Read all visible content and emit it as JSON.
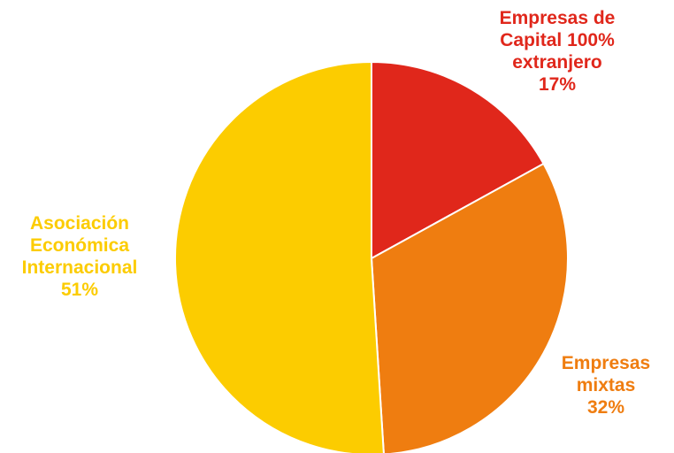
{
  "chart_data": {
    "type": "pie",
    "categories": [
      "Empresas de Capital 100% extranjero",
      "Empresas mixtas",
      "Asociación Económica Internacional"
    ],
    "values": [
      17,
      32,
      51
    ],
    "unit": "%",
    "colors": [
      "#e0271b",
      "#ef7d10",
      "#fccc00"
    ],
    "start_angle_deg": 0,
    "direction": "clockwise",
    "legend": "none",
    "labels": [
      {
        "lines": [
          "Empresas de",
          "Capital 100%",
          "extranjero"
        ],
        "pct": "17%",
        "color": "#e0271b"
      },
      {
        "lines": [
          "Empresas",
          "mixtas"
        ],
        "pct": "32%",
        "color": "#ef7d10"
      },
      {
        "lines": [
          "Asociación",
          "Económica",
          "Internacional"
        ],
        "pct": "51%",
        "color": "#fccc00"
      }
    ]
  }
}
